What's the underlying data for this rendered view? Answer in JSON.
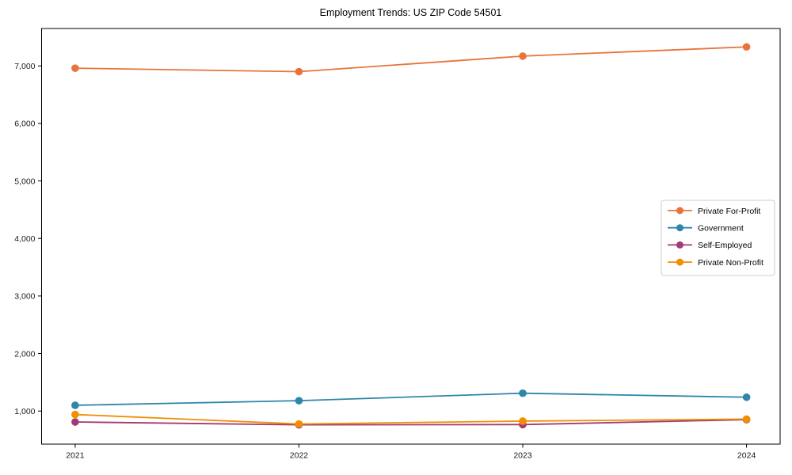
{
  "figure": {
    "title": "Employment Trends: US ZIP Code 54501"
  },
  "chart_data": {
    "type": "line",
    "title": "Employment Trends: US ZIP Code 54501",
    "xlabel": "",
    "ylabel": "",
    "x": [
      2021,
      2022,
      2023,
      2024
    ],
    "x_tick_labels": [
      "2021",
      "2022",
      "2023",
      "2024"
    ],
    "y_ticks": [
      1000,
      2000,
      3000,
      4000,
      5000,
      6000,
      7000
    ],
    "y_tick_labels": [
      "1,000",
      "2,000",
      "3,000",
      "4,000",
      "5,000",
      "6,000",
      "7,000"
    ],
    "xlim": [
      2020.85,
      2024.15
    ],
    "ylim": [
      425,
      7650
    ],
    "grid": false,
    "marker": "circle",
    "legend": {
      "position": "center-right",
      "border": true
    },
    "series": [
      {
        "name": "Private For-Profit",
        "color": "#E8743B",
        "values": [
          6960,
          6900,
          7170,
          7330
        ]
      },
      {
        "name": "Government",
        "color": "#2E86AB",
        "values": [
          1100,
          1180,
          1310,
          1240
        ]
      },
      {
        "name": "Self-Employed",
        "color": "#A23B72",
        "values": [
          810,
          760,
          765,
          850
        ]
      },
      {
        "name": "Private Non-Profit",
        "color": "#F18F01",
        "values": [
          940,
          775,
          825,
          860
        ]
      }
    ],
    "axis_color": "#000000",
    "tick_label_color": "#1a1a1a",
    "legend_border_color": "#cccccc"
  }
}
